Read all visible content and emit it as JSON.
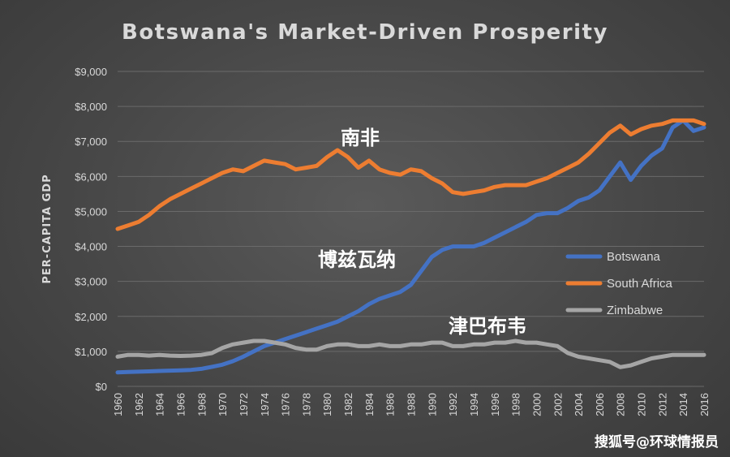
{
  "chart_data": {
    "type": "line",
    "title": "Botswana's  Market-Driven  Prosperity",
    "ylabel": "PER-CAPITA GDP",
    "xlabel": "",
    "ylim": [
      0,
      9000
    ],
    "xlim": [
      1960,
      2016
    ],
    "yticks": [
      0,
      1000,
      2000,
      3000,
      4000,
      5000,
      6000,
      7000,
      8000,
      9000
    ],
    "ytick_labels": [
      "$0",
      "$1,000",
      "$2,000",
      "$3,000",
      "$4,000",
      "$5,000",
      "$6,000",
      "$7,000",
      "$8,000",
      "$9,000"
    ],
    "xticks": [
      1960,
      1962,
      1964,
      1966,
      1968,
      1970,
      1972,
      1974,
      1976,
      1978,
      1980,
      1982,
      1984,
      1986,
      1988,
      1990,
      1992,
      1994,
      1996,
      1998,
      2000,
      2002,
      2004,
      2006,
      2008,
      2010,
      2012,
      2014,
      2016
    ],
    "grid": "horizontal",
    "legend_position": "right",
    "x": [
      1960,
      1961,
      1962,
      1963,
      1964,
      1965,
      1966,
      1967,
      1968,
      1969,
      1970,
      1971,
      1972,
      1973,
      1974,
      1975,
      1976,
      1977,
      1978,
      1979,
      1980,
      1981,
      1982,
      1983,
      1984,
      1985,
      1986,
      1987,
      1988,
      1989,
      1990,
      1991,
      1992,
      1993,
      1994,
      1995,
      1996,
      1997,
      1998,
      1999,
      2000,
      2001,
      2002,
      2003,
      2004,
      2005,
      2006,
      2007,
      2008,
      2009,
      2010,
      2011,
      2012,
      2013,
      2014,
      2015,
      2016
    ],
    "series": [
      {
        "name": "Botswana",
        "color": "#4472c4",
        "values": [
          400,
          410,
          420,
          430,
          440,
          450,
          460,
          470,
          500,
          560,
          620,
          720,
          850,
          1000,
          1150,
          1250,
          1350,
          1450,
          1550,
          1650,
          1750,
          1850,
          2000,
          2150,
          2350,
          2500,
          2600,
          2700,
          2900,
          3300,
          3700,
          3900,
          4000,
          4000,
          4000,
          4100,
          4250,
          4400,
          4550,
          4700,
          4900,
          4950,
          4950,
          5100,
          5300,
          5400,
          5600,
          6000,
          6400,
          5900,
          6300,
          6600,
          6800,
          7400,
          7600,
          7300,
          7400
        ]
      },
      {
        "name": "South Africa",
        "color": "#ed7d31",
        "values": [
          4500,
          4600,
          4700,
          4900,
          5150,
          5350,
          5500,
          5650,
          5800,
          5950,
          6100,
          6200,
          6150,
          6300,
          6450,
          6400,
          6350,
          6200,
          6250,
          6300,
          6550,
          6750,
          6550,
          6250,
          6450,
          6200,
          6100,
          6050,
          6200,
          6150,
          5950,
          5800,
          5550,
          5500,
          5550,
          5600,
          5700,
          5750,
          5750,
          5750,
          5850,
          5950,
          6100,
          6250,
          6400,
          6650,
          6950,
          7250,
          7450,
          7200,
          7350,
          7450,
          7500,
          7600,
          7600,
          7600,
          7500
        ]
      },
      {
        "name": "Zimbabwe",
        "color": "#a5a5a5",
        "values": [
          850,
          900,
          900,
          880,
          900,
          880,
          870,
          880,
          900,
          950,
          1100,
          1200,
          1250,
          1300,
          1300,
          1250,
          1200,
          1100,
          1050,
          1050,
          1150,
          1200,
          1200,
          1150,
          1150,
          1200,
          1150,
          1150,
          1200,
          1200,
          1250,
          1250,
          1150,
          1150,
          1200,
          1200,
          1250,
          1250,
          1300,
          1250,
          1250,
          1200,
          1150,
          950,
          850,
          800,
          750,
          700,
          550,
          600,
          700,
          800,
          850,
          900,
          900,
          900,
          900
        ]
      }
    ],
    "annotations": [
      {
        "text": "南非",
        "series": "South Africa"
      },
      {
        "text": "博兹瓦纳",
        "series": "Botswana"
      },
      {
        "text": "津巴布韦",
        "series": "Zimbabwe"
      }
    ]
  },
  "watermark": "搜狐号@环球情报员"
}
